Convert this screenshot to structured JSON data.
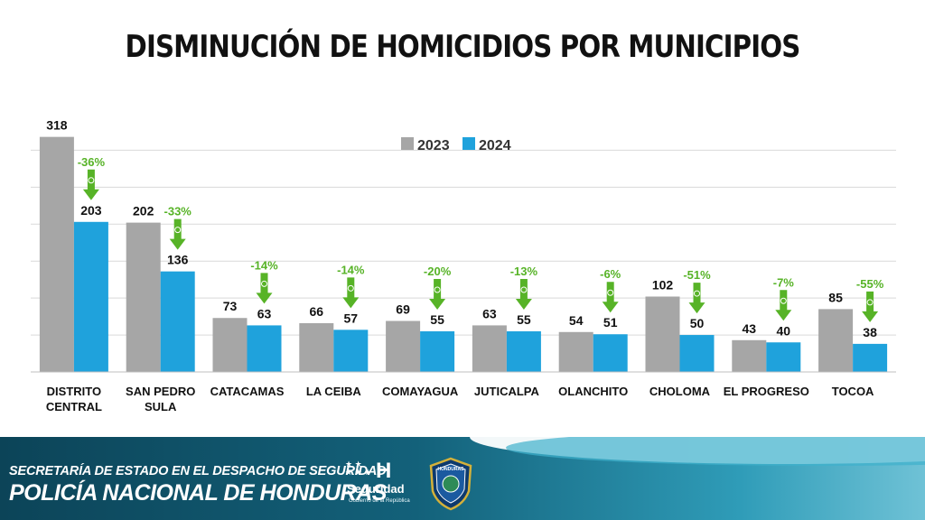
{
  "title": "DISMINUCIÓN DE HOMICIDIOS POR MUNICIPIOS",
  "colors": {
    "series_2023": "#a6a6a6",
    "series_2024": "#1fa2dc",
    "change": "#57b327",
    "grid": "#d9d9d9"
  },
  "chart_data": {
    "type": "bar",
    "title": "DISMINUCIÓN DE HOMICIDIOS POR MUNICIPIOS",
    "categories": [
      [
        "DISTRITO",
        "CENTRAL"
      ],
      [
        "SAN PEDRO",
        "SULA"
      ],
      [
        "CATACAMAS"
      ],
      [
        "LA CEIBA"
      ],
      [
        "COMAYAGUA"
      ],
      [
        "JUTICALPA"
      ],
      [
        "OLANCHITO"
      ],
      [
        "CHOLOMA"
      ],
      [
        "EL PROGRESO"
      ],
      [
        "TOCOA"
      ]
    ],
    "series": [
      {
        "name": "2023",
        "values": [
          318,
          202,
          73,
          66,
          69,
          63,
          54,
          102,
          43,
          85
        ]
      },
      {
        "name": "2024",
        "values": [
          203,
          136,
          63,
          57,
          55,
          55,
          51,
          50,
          40,
          38
        ]
      }
    ],
    "changes": [
      "-36%",
      "-33%",
      "-14%",
      "-14%",
      "-20%",
      "-13%",
      "-6%",
      "-51%",
      "-7%",
      "-55%"
    ],
    "ylim": [
      0,
      320
    ],
    "legend": "top-center",
    "grid": true,
    "xlabel": "",
    "ylabel": ""
  },
  "footer": {
    "org_line1": "SECRETARÍA DE ESTADO EN EL DESPACHO DE SEGURIDAD",
    "org_line2": "POLICÍA NACIONAL DE HONDURAS",
    "logo_letter": "H",
    "logo_word": "Seguridad",
    "logo_sub": "Gobierno de la República",
    "badge_text": "HONDURAS"
  }
}
